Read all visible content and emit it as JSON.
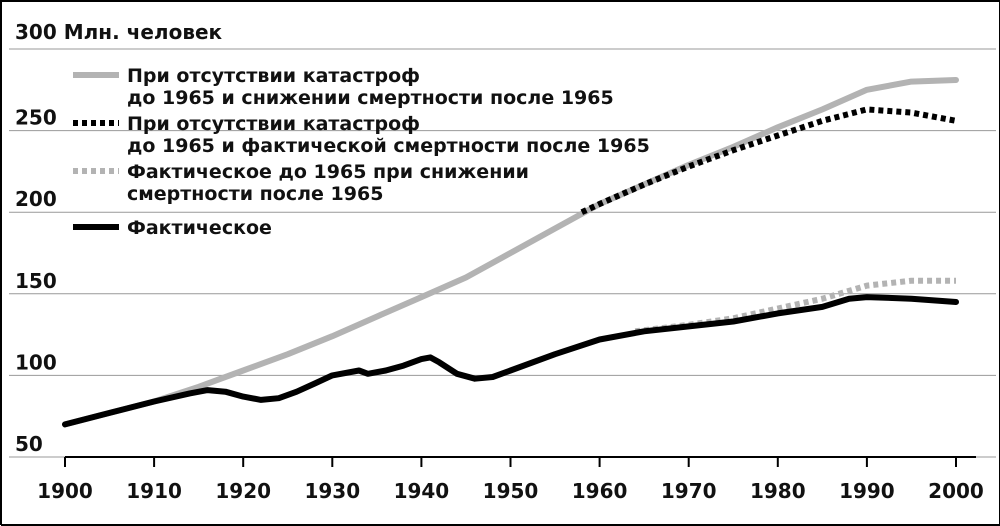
{
  "chart_data": {
    "type": "line",
    "ylabel": "300 Млн. человек",
    "xlim": [
      1900,
      2000
    ],
    "ylim": [
      50,
      300
    ],
    "x_ticks": [
      "1900",
      "1910",
      "1920",
      "1930",
      "1940",
      "1950",
      "1960",
      "1970",
      "1980",
      "1990",
      "2000"
    ],
    "y_ticks": [
      "50",
      "100",
      "150",
      "200",
      "250"
    ],
    "grid": "horizontal",
    "legend_position": "top-left",
    "series": [
      {
        "name_lines": [
          "При отсутствии катастроф",
          "до 1965 и снижении смертности после 1965"
        ],
        "color": "#b3b3b3",
        "style": "solid",
        "points": [
          [
            1900,
            70
          ],
          [
            1905,
            77
          ],
          [
            1910,
            84
          ],
          [
            1915,
            93
          ],
          [
            1920,
            103
          ],
          [
            1925,
            113
          ],
          [
            1930,
            124
          ],
          [
            1935,
            136
          ],
          [
            1940,
            148
          ],
          [
            1945,
            160
          ],
          [
            1950,
            175
          ],
          [
            1955,
            190
          ],
          [
            1960,
            205
          ],
          [
            1965,
            217
          ],
          [
            1970,
            229
          ],
          [
            1975,
            240
          ],
          [
            1980,
            252
          ],
          [
            1985,
            263
          ],
          [
            1990,
            275
          ],
          [
            1995,
            280
          ],
          [
            2000,
            281
          ]
        ]
      },
      {
        "name_lines": [
          "При отсутствии катастроф",
          "до 1965 и фактической смертности после 1965"
        ],
        "color": "#000000",
        "style": "dotted",
        "points": [
          [
            1958,
            200
          ],
          [
            1960,
            205
          ],
          [
            1965,
            217
          ],
          [
            1970,
            228
          ],
          [
            1975,
            238
          ],
          [
            1980,
            247
          ],
          [
            1985,
            256
          ],
          [
            1990,
            263
          ],
          [
            1995,
            261
          ],
          [
            2000,
            256
          ]
        ]
      },
      {
        "name_lines": [
          "Фактическое до 1965 при снижении",
          "смертности после 1965"
        ],
        "color": "#b3b3b3",
        "style": "dotted",
        "points": [
          [
            1964,
            127
          ],
          [
            1970,
            131
          ],
          [
            1975,
            135
          ],
          [
            1980,
            141
          ],
          [
            1985,
            147
          ],
          [
            1990,
            155
          ],
          [
            1995,
            158
          ],
          [
            2000,
            158
          ]
        ]
      },
      {
        "name_lines": [
          "Фактическое"
        ],
        "color": "#000000",
        "style": "solid",
        "points": [
          [
            1900,
            70
          ],
          [
            1905,
            77
          ],
          [
            1910,
            84
          ],
          [
            1914,
            89
          ],
          [
            1916,
            91
          ],
          [
            1918,
            90
          ],
          [
            1920,
            87
          ],
          [
            1922,
            85
          ],
          [
            1924,
            86
          ],
          [
            1926,
            90
          ],
          [
            1928,
            95
          ],
          [
            1930,
            100
          ],
          [
            1933,
            103
          ],
          [
            1934,
            101
          ],
          [
            1936,
            103
          ],
          [
            1938,
            106
          ],
          [
            1940,
            110
          ],
          [
            1941,
            111
          ],
          [
            1942,
            108
          ],
          [
            1944,
            101
          ],
          [
            1946,
            98
          ],
          [
            1948,
            99
          ],
          [
            1950,
            103
          ],
          [
            1955,
            113
          ],
          [
            1960,
            122
          ],
          [
            1965,
            127
          ],
          [
            1970,
            130
          ],
          [
            1975,
            133
          ],
          [
            1980,
            138
          ],
          [
            1985,
            142
          ],
          [
            1988,
            147
          ],
          [
            1990,
            148
          ],
          [
            1995,
            147
          ],
          [
            2000,
            145
          ]
        ]
      }
    ]
  }
}
